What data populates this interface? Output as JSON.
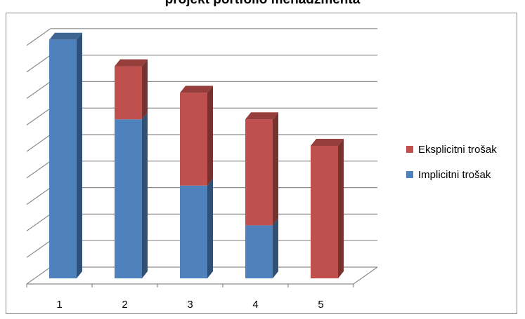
{
  "chart_data": {
    "type": "bar",
    "stacked": true,
    "three_d": true,
    "title": "projekt portfolio menadžmenta",
    "xlabel": "",
    "ylabel": "",
    "categories": [
      "1",
      "2",
      "3",
      "4",
      "5"
    ],
    "series": [
      {
        "name": "Implicitni trošak",
        "values": [
          9,
          6,
          3.5,
          2,
          0
        ],
        "color": "#4f81bd"
      },
      {
        "name": "Eksplicitni trošak",
        "values": [
          0,
          2,
          3.5,
          4,
          5
        ],
        "color": "#c0504d"
      }
    ],
    "ylim": [
      0,
      9
    ],
    "grid": true,
    "legend_position": "right",
    "y_tick_labels_visible": false
  }
}
